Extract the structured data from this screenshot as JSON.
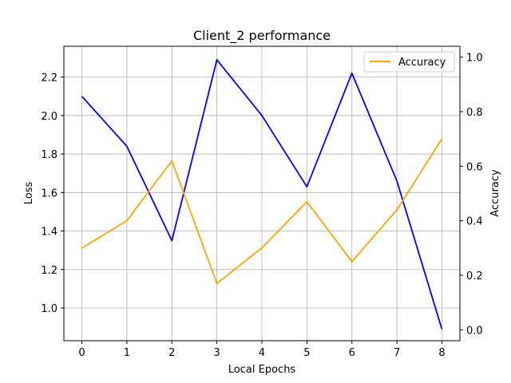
{
  "chart_data": {
    "type": "line",
    "title": "Client_2 performance",
    "xlabel": "Local Epochs",
    "ylabel": "Loss",
    "y2label": "Accuracy",
    "x": [
      0,
      1,
      2,
      3,
      4,
      5,
      6,
      7,
      8
    ],
    "xlim": [
      -0.4,
      8.4
    ],
    "ylim": [
      0.83,
      2.36
    ],
    "y2lim": [
      -0.04,
      1.04
    ],
    "x_ticks": [
      "0",
      "1",
      "2",
      "3",
      "4",
      "5",
      "6",
      "7",
      "8"
    ],
    "y_ticks": [
      "1.0",
      "1.2",
      "1.4",
      "1.6",
      "1.8",
      "2.0",
      "2.2"
    ],
    "y2_ticks": [
      "0.0",
      "0.2",
      "0.4",
      "0.6",
      "0.8",
      "1.0"
    ],
    "grid": true,
    "legend_position": "top-right",
    "series": [
      {
        "axis": "left",
        "color": "#0000ff",
        "values": [
          2.1,
          1.84,
          1.35,
          2.29,
          2.0,
          1.63,
          2.22,
          1.66,
          0.89
        ]
      },
      {
        "name": "Accuracy",
        "axis": "right",
        "color": "#ffa500",
        "values": [
          0.3,
          0.4,
          0.62,
          0.17,
          0.3,
          0.47,
          0.25,
          0.44,
          0.7
        ]
      }
    ]
  }
}
